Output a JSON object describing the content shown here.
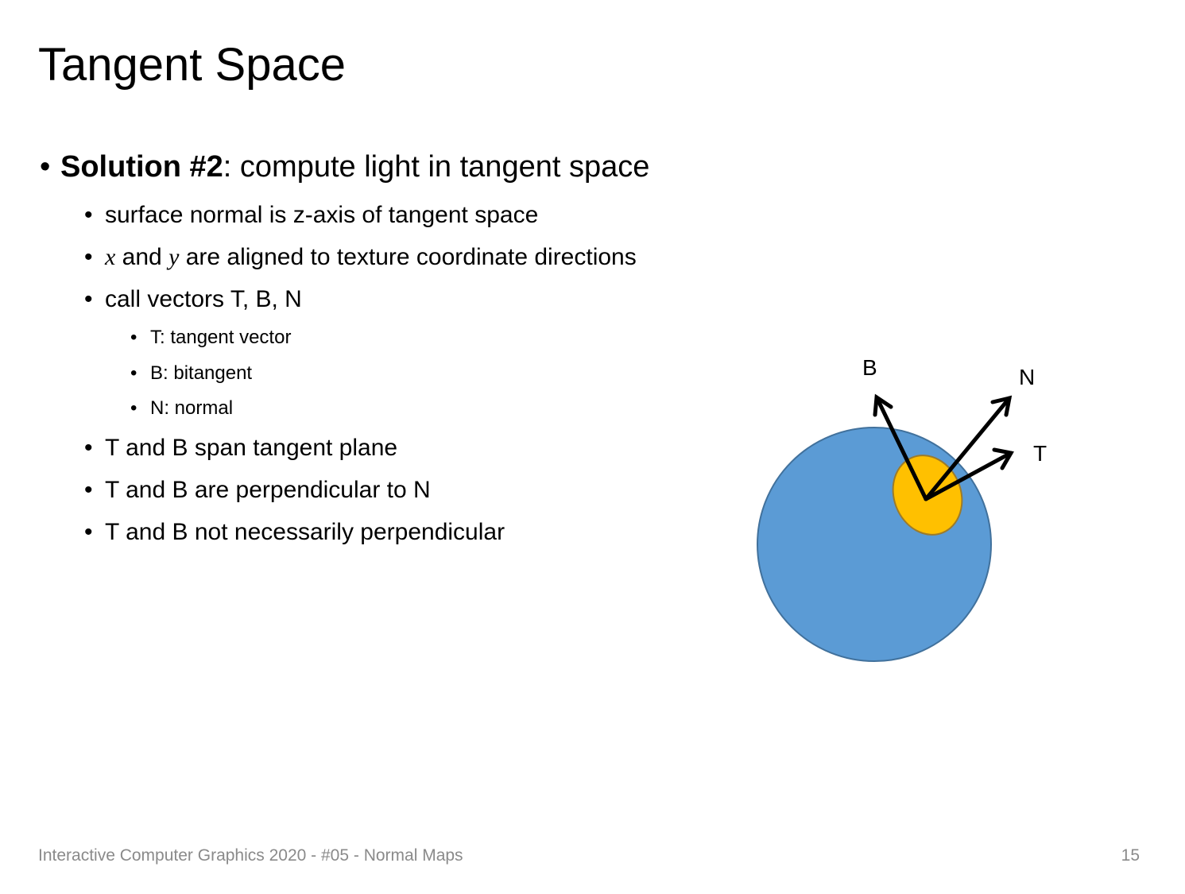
{
  "title": "Tangent Space",
  "bullets": [
    {
      "level": 1,
      "parts": [
        {
          "text": "Solution #2",
          "bold": true
        },
        {
          "text": ": compute light in tangent space"
        }
      ]
    },
    {
      "level": 2,
      "parts": [
        {
          "text": "surface normal is z-axis of tangent space"
        }
      ]
    },
    {
      "level": 2,
      "parts": [
        {
          "text": "x",
          "italic": true
        },
        {
          "text": " and "
        },
        {
          "text": "y",
          "italic": true
        },
        {
          "text": " are aligned to texture coordinate directions"
        }
      ]
    },
    {
      "level": 2,
      "parts": [
        {
          "text": "call vectors T, B, N"
        }
      ]
    },
    {
      "level": 3,
      "parts": [
        {
          "text": "T: tangent vector"
        }
      ]
    },
    {
      "level": 3,
      "parts": [
        {
          "text": "B: bitangent"
        }
      ]
    },
    {
      "level": 3,
      "parts": [
        {
          "text": "N: normal"
        }
      ]
    },
    {
      "level": 2,
      "parts": [
        {
          "text": "T and B span tangent plane"
        }
      ]
    },
    {
      "level": 2,
      "parts": [
        {
          "text": "T and B are perpendicular to N"
        }
      ]
    },
    {
      "level": 2,
      "parts": [
        {
          "text": "T and B not necessarily perpendicular"
        }
      ]
    }
  ],
  "diagram": {
    "labels": [
      "B",
      "N",
      "T"
    ]
  },
  "footer": {
    "text": "Interactive Computer Graphics 2020 - #05 - Normal Maps",
    "page": "15"
  }
}
